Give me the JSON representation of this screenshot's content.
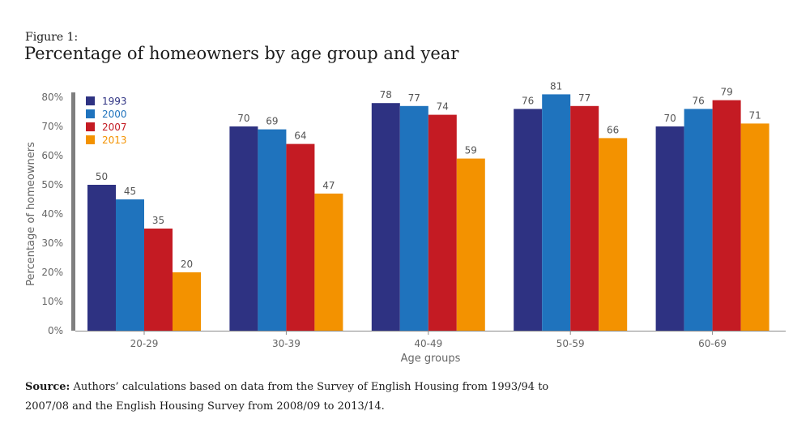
{
  "figure": {
    "label": "Figure 1:",
    "title": "Percentage of homeowners by age group and year"
  },
  "source": {
    "bold": "Source:",
    "line1": " Authors’ calculations based on data from the Survey of English Housing from 1993/94 to",
    "line2": "2007/08 and the English Housing Survey from 2008/09 to 2013/14."
  },
  "chart_data": {
    "type": "bar",
    "title": "Percentage of homeowners by age group and year",
    "xlabel": "Age groups",
    "ylabel": "Percentage of homeowners",
    "ylim": [
      0,
      80
    ],
    "yticks": [
      "0%",
      "10%",
      "20%",
      "30%",
      "40%",
      "50%",
      "60%",
      "70%",
      "80%"
    ],
    "categories": [
      "20-29",
      "30-39",
      "40-49",
      "50-59",
      "60-69"
    ],
    "grid": false,
    "legend_position": "top-left",
    "series": [
      {
        "name": "1993",
        "color": "#2e3282",
        "values": [
          50,
          70,
          78,
          76,
          70
        ]
      },
      {
        "name": "2000",
        "color": "#1f73bd",
        "values": [
          45,
          69,
          77,
          81,
          76
        ]
      },
      {
        "name": "2007",
        "color": "#c41b23",
        "values": [
          35,
          64,
          74,
          77,
          79
        ]
      },
      {
        "name": "2013",
        "color": "#f39200",
        "values": [
          20,
          47,
          59,
          66,
          71
        ]
      }
    ]
  }
}
